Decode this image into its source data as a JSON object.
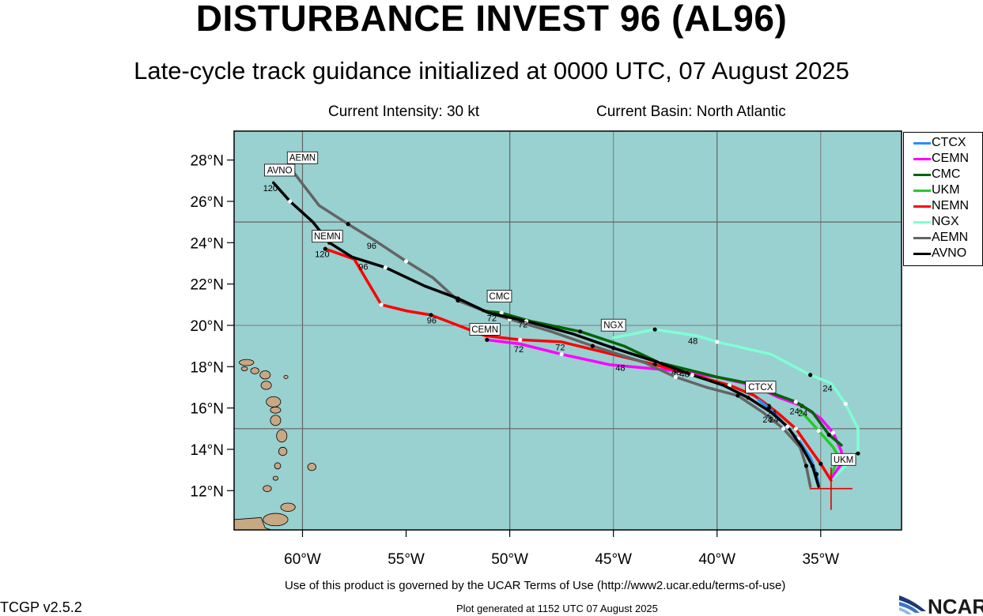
{
  "header": {
    "title": "DISTURBANCE INVEST 96 (AL96)",
    "subtitle": "Late-cycle track guidance initialized at 0000 UTC, 07 August 2025",
    "intensity": "Current Intensity: 30 kt",
    "basin": "Current Basin: North Atlantic"
  },
  "axes": {
    "lat_ticks": [
      "28°N",
      "26°N",
      "24°N",
      "22°N",
      "20°N",
      "18°N",
      "16°N",
      "14°N",
      "12°N"
    ],
    "lon_ticks": [
      "60°W",
      "55°W",
      "50°W",
      "45°W",
      "40°W",
      "35°W"
    ]
  },
  "legend": [
    {
      "label": "CTCX",
      "color": "#2a8cff"
    },
    {
      "label": "CEMN",
      "color": "#ff00ff"
    },
    {
      "label": "CMC",
      "color": "#006400"
    },
    {
      "label": "UKM",
      "color": "#28c828"
    },
    {
      "label": "NEMN",
      "color": "#ff0000"
    },
    {
      "label": "NGX",
      "color": "#7fffd4"
    },
    {
      "label": "AEMN",
      "color": "#646464"
    },
    {
      "label": "AVNO",
      "color": "#000000"
    }
  ],
  "colors": {
    "ocean": "#99d0d0",
    "land": "#c8a882",
    "grid": "#646464"
  },
  "tracks": [
    {
      "name": "NGX",
      "color": "#7fffd4",
      "points": [
        [
          -34.5,
          12.5
        ],
        [
          -33.2,
          13.8
        ],
        [
          -33.2,
          15.0
        ],
        [
          -33.8,
          16.2
        ],
        [
          -34.5,
          17.2
        ],
        [
          -35.5,
          17.6
        ],
        [
          -37.4,
          18.6
        ],
        [
          -40.0,
          19.2
        ],
        [
          -41.0,
          19.5
        ],
        [
          -43.0,
          19.8
        ],
        [
          -45.0,
          19.4
        ]
      ]
    },
    {
      "name": "UKM",
      "color": "#28c828",
      "points": [
        [
          -34.5,
          12.8
        ],
        [
          -34.1,
          13.6
        ],
        [
          -34.4,
          14.1
        ],
        [
          -35.1,
          14.9
        ],
        [
          -36.0,
          15.9
        ]
      ]
    },
    {
      "name": "CEMN",
      "color": "#ff00ff",
      "points": [
        [
          -34.5,
          12.6
        ],
        [
          -34.0,
          13.3
        ],
        [
          -34.0,
          13.9
        ],
        [
          -34.4,
          14.8
        ],
        [
          -35.0,
          15.5
        ],
        [
          -35.9,
          16.1
        ],
        [
          -37.0,
          16.5
        ],
        [
          -38.3,
          17.1
        ],
        [
          -40.0,
          17.5
        ],
        [
          -42.0,
          17.8
        ],
        [
          -45.2,
          18.1
        ],
        [
          -47.5,
          18.6
        ],
        [
          -49.5,
          19.1
        ],
        [
          -51.1,
          19.3
        ]
      ]
    },
    {
      "name": "CMC",
      "color": "#006400",
      "points": [
        [
          -34.0,
          14.2
        ],
        [
          -34.6,
          14.7
        ],
        [
          -35.4,
          15.8
        ],
        [
          -36.2,
          16.3
        ],
        [
          -37.3,
          16.7
        ],
        [
          -38.5,
          17.2
        ],
        [
          -40.0,
          17.5
        ],
        [
          -42.8,
          18.2
        ],
        [
          -44.5,
          19.0
        ],
        [
          -46.6,
          19.7
        ],
        [
          -49.0,
          20.2
        ],
        [
          -50.4,
          20.6
        ],
        [
          -51.3,
          20.7
        ]
      ]
    },
    {
      "name": "NEMN",
      "color": "#ff0000",
      "points": [
        [
          -34.5,
          12.5
        ],
        [
          -35.0,
          13.3
        ],
        [
          -35.5,
          14.0
        ],
        [
          -36.2,
          15.0
        ],
        [
          -37.0,
          15.7
        ],
        [
          -37.5,
          16.1
        ],
        [
          -38.2,
          16.6
        ],
        [
          -39.4,
          17.1
        ],
        [
          -41.5,
          17.7
        ],
        [
          -43.0,
          18.1
        ],
        [
          -47.5,
          19.2
        ],
        [
          -49.5,
          19.3
        ],
        [
          -51.2,
          19.5
        ],
        [
          -53.8,
          20.5
        ],
        [
          -55.0,
          20.7
        ],
        [
          -56.2,
          21.0
        ],
        [
          -57.5,
          23.2
        ],
        [
          -58.9,
          23.7
        ]
      ]
    },
    {
      "name": "CTCX",
      "color": "#2a8cff",
      "points": [
        [
          -35.1,
          12.3
        ],
        [
          -35.2,
          12.8
        ],
        [
          -35.5,
          13.6
        ],
        [
          -36.1,
          14.5
        ],
        [
          -37.1,
          15.6
        ],
        [
          -37.5,
          16.0
        ],
        [
          -38.0,
          16.4
        ]
      ]
    },
    {
      "name": "AEMN",
      "color": "#646464",
      "points": [
        [
          -35.5,
          12.2
        ],
        [
          -35.7,
          13.2
        ],
        [
          -36.0,
          14.1
        ],
        [
          -36.8,
          15.0
        ],
        [
          -37.8,
          15.8
        ],
        [
          -39.0,
          16.6
        ],
        [
          -40.5,
          17.0
        ],
        [
          -42.0,
          17.5
        ],
        [
          -43.5,
          18.2
        ],
        [
          -46.0,
          19.0
        ],
        [
          -48.0,
          19.7
        ],
        [
          -50.0,
          20.3
        ],
        [
          -51.0,
          20.6
        ],
        [
          -52.5,
          21.2
        ],
        [
          -53.7,
          22.3
        ],
        [
          -55.0,
          23.1
        ],
        [
          -56.5,
          24.1
        ],
        [
          -57.8,
          24.9
        ],
        [
          -59.2,
          25.8
        ],
        [
          -60.5,
          27.5
        ]
      ]
    },
    {
      "name": "AVNO",
      "color": "#000000",
      "points": [
        [
          -35.1,
          12.2
        ],
        [
          -35.4,
          13.2
        ],
        [
          -35.9,
          14.1
        ],
        [
          -36.6,
          15.1
        ],
        [
          -37.4,
          15.8
        ],
        [
          -38.5,
          16.5
        ],
        [
          -39.7,
          17.1
        ],
        [
          -41.2,
          17.6
        ],
        [
          -42.8,
          18.2
        ],
        [
          -45.0,
          18.9
        ],
        [
          -47.0,
          19.6
        ],
        [
          -49.2,
          20.2
        ],
        [
          -51.0,
          20.6
        ],
        [
          -52.5,
          21.3
        ],
        [
          -54.1,
          21.9
        ],
        [
          -56.0,
          22.8
        ],
        [
          -57.6,
          23.3
        ],
        [
          -58.7,
          24.0
        ],
        [
          -59.5,
          25.0
        ],
        [
          -60.6,
          26.0
        ],
        [
          -61.4,
          26.9
        ]
      ]
    }
  ],
  "hour_labels": [
    {
      "text": "120",
      "lon": -61.9,
      "lat": 26.5
    },
    {
      "text": "120",
      "lon": -59.4,
      "lat": 23.3
    },
    {
      "text": "96",
      "lon": -57.3,
      "lat": 22.7
    },
    {
      "text": "96",
      "lon": -56.9,
      "lat": 23.7
    },
    {
      "text": "96",
      "lon": -54.0,
      "lat": 20.1
    },
    {
      "text": "72",
      "lon": -51.1,
      "lat": 20.2
    },
    {
      "text": "72",
      "lon": -49.6,
      "lat": 19.9
    },
    {
      "text": "72",
      "lon": -49.8,
      "lat": 18.7
    },
    {
      "text": "72",
      "lon": -47.8,
      "lat": 18.8
    },
    {
      "text": "48",
      "lon": -41.4,
      "lat": 19.1
    },
    {
      "text": "48",
      "lon": -44.9,
      "lat": 17.8
    },
    {
      "text": "48",
      "lon": -42.2,
      "lat": 17.6
    },
    {
      "text": "48",
      "lon": -41.8,
      "lat": 17.5
    },
    {
      "text": "24",
      "lon": -34.9,
      "lat": 16.8
    },
    {
      "text": "24",
      "lon": -37.6,
      "lat": 15.6
    },
    {
      "text": "24",
      "lon": -37.8,
      "lat": 15.3
    },
    {
      "text": "24",
      "lon": -37.5,
      "lat": 15.3
    },
    {
      "text": "24",
      "lon": -36.5,
      "lat": 15.7
    },
    {
      "text": "24",
      "lon": -36.1,
      "lat": 15.6
    }
  ],
  "box_labels": [
    {
      "text": "AEMN",
      "lon": -60.0,
      "lat": 27.9
    },
    {
      "text": "AVNO",
      "lon": -61.1,
      "lat": 27.3
    },
    {
      "text": "NEMN",
      "lon": -58.8,
      "lat": 24.1
    },
    {
      "text": "CMC",
      "lon": -50.5,
      "lat": 21.2
    },
    {
      "text": "CEMN",
      "lon": -51.2,
      "lat": 19.6
    },
    {
      "text": "NGX",
      "lon": -45.0,
      "lat": 19.8
    },
    {
      "text": "CTCX",
      "lon": -37.9,
      "lat": 16.8
    },
    {
      "text": "UKM",
      "lon": -33.9,
      "lat": 13.3
    }
  ],
  "footer": {
    "terms": "Use of this product is governed by the UCAR Terms of Use (http://www2.ucar.edu/terms-of-use)",
    "generated": "Plot generated at 1152 UTC   07 August 2025",
    "version": "TCGP v2.5.2",
    "logo": "NCAR"
  }
}
